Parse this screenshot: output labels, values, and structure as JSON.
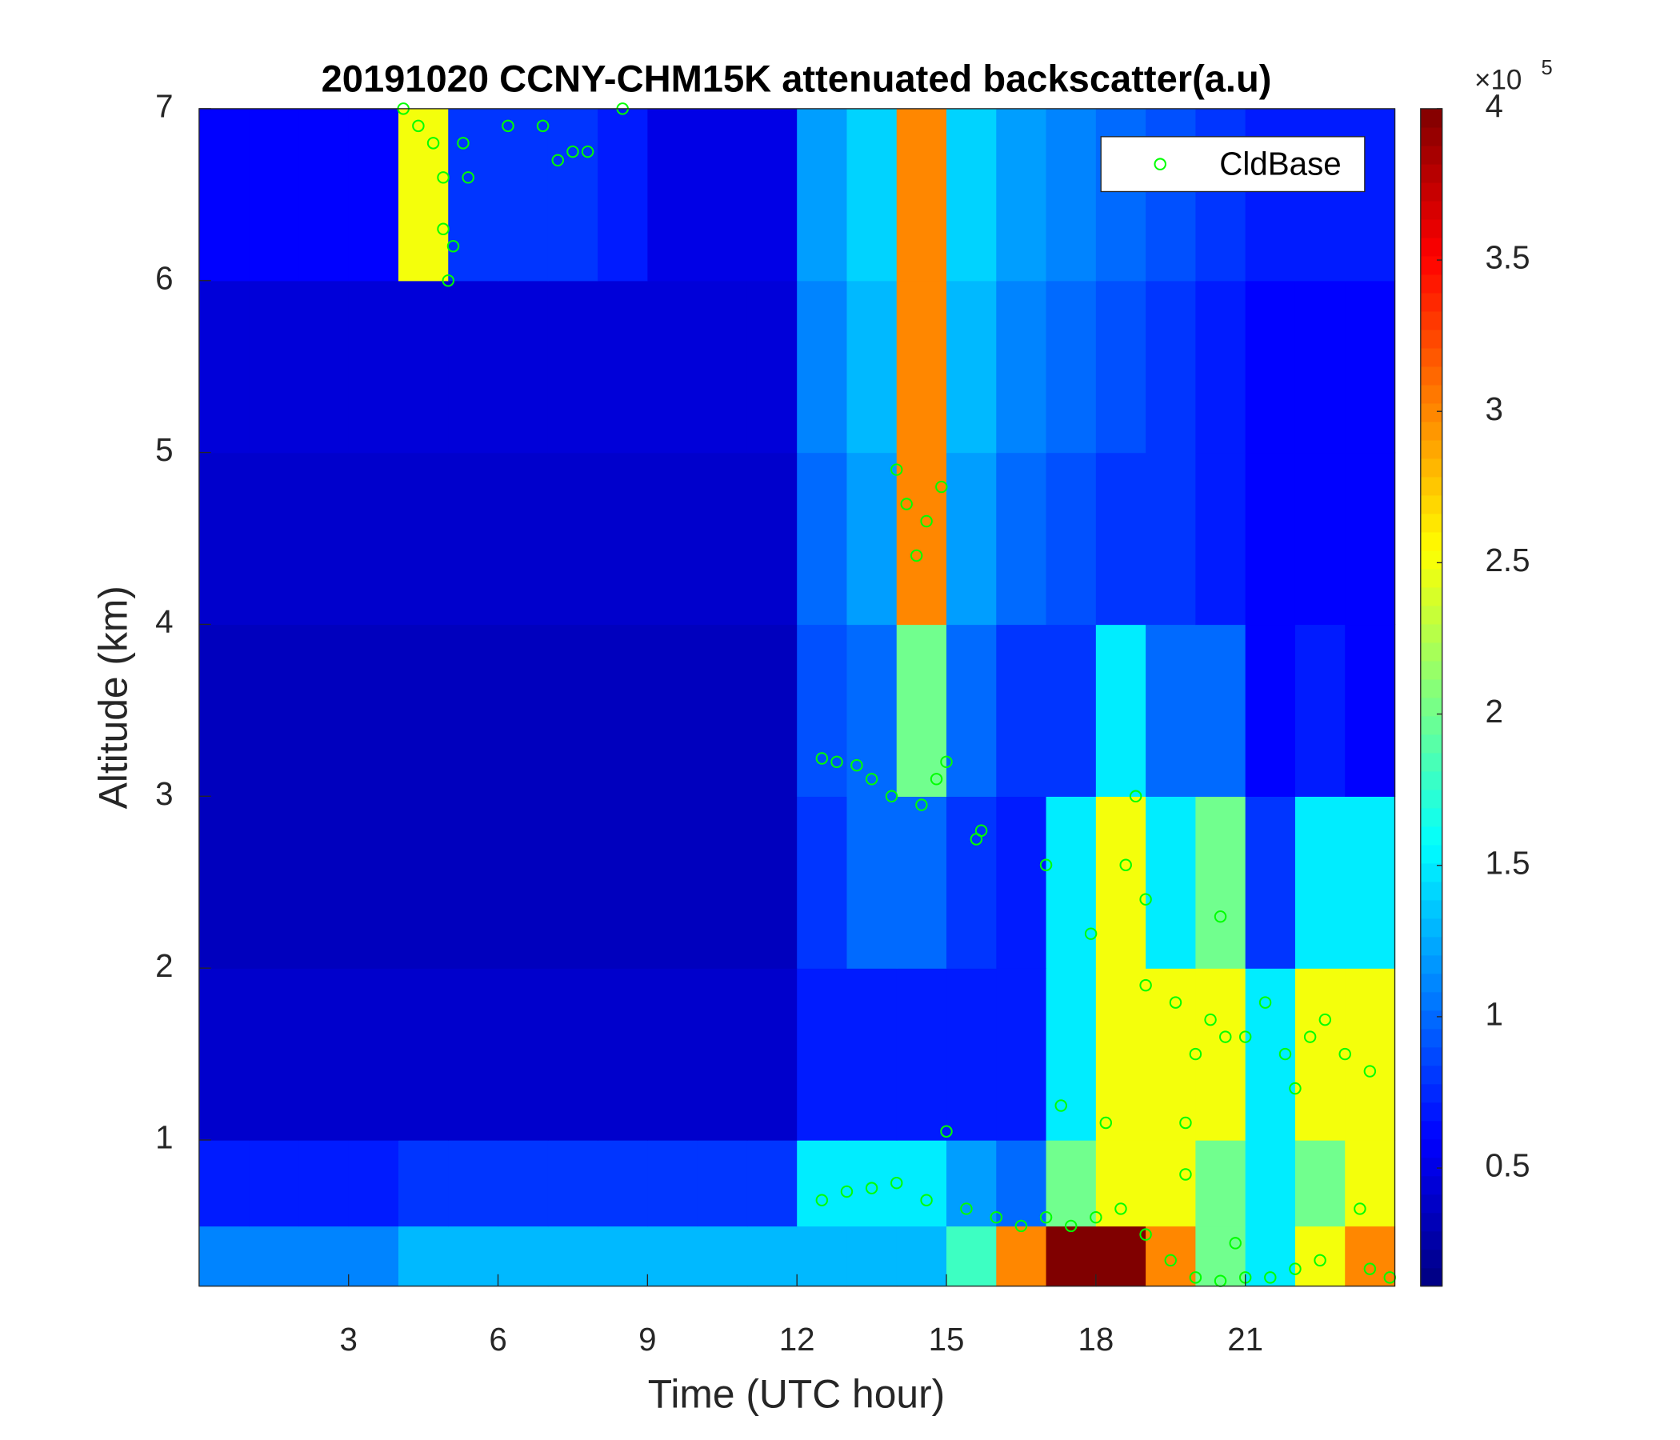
{
  "chart_data": {
    "type": "heatmap",
    "title": "20191020 CCNY-CHM15K attenuated backscatter(a.u)",
    "xlabel": "Time (UTC hour)",
    "ylabel": "Altitude (km)",
    "xlim": [
      0,
      24
    ],
    "ylim": [
      0.15,
      7
    ],
    "xticks": [
      3,
      6,
      9,
      12,
      15,
      18,
      21
    ],
    "yticks": [
      1,
      2,
      3,
      4,
      5,
      6,
      7
    ],
    "x_edges": [
      0,
      1,
      2,
      3,
      4,
      5,
      6,
      7,
      8,
      9,
      10,
      11,
      12,
      13,
      14,
      15,
      16,
      17,
      18,
      19,
      20,
      21,
      22,
      23,
      24
    ],
    "y_edges": [
      0.15,
      0.5,
      1,
      2,
      3,
      4,
      5,
      6,
      7
    ],
    "z": [
      [
        1.1,
        1.1,
        1.1,
        1.1,
        1.3,
        1.3,
        1.3,
        1.3,
        1.3,
        1.3,
        1.3,
        1.3,
        1.3,
        1.3,
        1.3,
        1.8,
        3.0,
        4,
        4,
        3.0,
        2.0,
        1.5,
        2.5,
        3.0
      ],
      [
        0.7,
        0.7,
        0.7,
        0.7,
        0.8,
        0.8,
        0.8,
        0.8,
        0.8,
        0.8,
        0.8,
        0.8,
        1.5,
        1.5,
        1.5,
        1.2,
        1.0,
        2.0,
        2.5,
        2.5,
        2.0,
        1.5,
        2.0,
        2.5
      ],
      [
        0.4,
        0.4,
        0.4,
        0.4,
        0.4,
        0.4,
        0.4,
        0.4,
        0.4,
        0.4,
        0.4,
        0.4,
        0.7,
        0.7,
        0.7,
        0.7,
        0.7,
        1.5,
        2.5,
        2.5,
        2.5,
        1.5,
        2.5,
        2.5
      ],
      [
        0.35,
        0.35,
        0.35,
        0.35,
        0.35,
        0.35,
        0.35,
        0.35,
        0.35,
        0.35,
        0.35,
        0.35,
        0.8,
        1.0,
        1.0,
        0.8,
        0.7,
        1.5,
        2.5,
        1.5,
        2.0,
        0.8,
        1.5,
        1.5
      ],
      [
        0.35,
        0.35,
        0.35,
        0.35,
        0.35,
        0.35,
        0.35,
        0.35,
        0.35,
        0.35,
        0.35,
        0.35,
        0.9,
        1.0,
        2.0,
        1.0,
        0.8,
        0.8,
        1.5,
        1.0,
        1.0,
        0.6,
        0.7,
        0.6
      ],
      [
        0.4,
        0.4,
        0.4,
        0.4,
        0.4,
        0.4,
        0.4,
        0.4,
        0.4,
        0.4,
        0.4,
        0.4,
        1.0,
        1.2,
        3.0,
        1.2,
        1.0,
        0.9,
        0.8,
        0.8,
        0.7,
        0.6,
        0.6,
        0.6
      ],
      [
        0.45,
        0.45,
        0.45,
        0.45,
        0.45,
        0.45,
        0.45,
        0.45,
        0.45,
        0.45,
        0.45,
        0.45,
        1.1,
        1.3,
        3.0,
        1.3,
        1.1,
        1.0,
        0.9,
        0.8,
        0.7,
        0.6,
        0.6,
        0.6
      ],
      [
        0.6,
        0.6,
        0.6,
        0.6,
        2.5,
        0.8,
        0.8,
        0.8,
        0.7,
        0.5,
        0.5,
        0.5,
        1.2,
        1.4,
        3.0,
        1.4,
        1.2,
        1.1,
        1.0,
        0.9,
        0.8,
        0.7,
        0.7,
        0.7
      ]
    ],
    "colormap": "jet",
    "clim": [
      0.11,
      4
    ],
    "colorbar_ticks": [
      0.5,
      1,
      1.5,
      2,
      2.5,
      3,
      3.5,
      4
    ],
    "colorbar_multiplier": "×10",
    "colorbar_exponent": 5,
    "legend": "northeast",
    "series": [
      {
        "name": "CldBase",
        "type": "scatter",
        "color": "#00ff00",
        "x": [
          4.1,
          4.4,
          4.7,
          4.9,
          4.9,
          5.0,
          5.1,
          5.3,
          5.4,
          6.2,
          6.9,
          7.2,
          7.5,
          7.8,
          8.5,
          14.0,
          14.2,
          14.4,
          14.6,
          14.9,
          12.5,
          12.8,
          13.2,
          13.5,
          13.9,
          14.5,
          14.8,
          15.0,
          15.6,
          15.7,
          12.5,
          13.0,
          13.5,
          14.0,
          14.6,
          15.0,
          15.4,
          16.0,
          16.5,
          17.0,
          17.5,
          18.0,
          18.5,
          19.0,
          19.5,
          20.0,
          20.5,
          21.0,
          21.5,
          22.0,
          22.5,
          23.5,
          23.9,
          17.3,
          17.9,
          18.2,
          18.6,
          18.8,
          19.0,
          19.0,
          19.6,
          19.8,
          20.0,
          20.3,
          20.5,
          20.6,
          21.0,
          21.4,
          21.8,
          22.0,
          22.3,
          22.6,
          23.0,
          23.5,
          19.8,
          20.8,
          17.0,
          23.3
        ],
        "y": [
          7.0,
          6.9,
          6.8,
          6.6,
          6.3,
          6.0,
          6.2,
          6.8,
          6.6,
          6.9,
          6.9,
          6.7,
          6.75,
          6.75,
          7.0,
          4.9,
          4.7,
          4.4,
          4.6,
          4.8,
          3.22,
          3.2,
          3.18,
          3.1,
          3.0,
          2.95,
          3.1,
          3.2,
          2.75,
          2.8,
          0.65,
          0.7,
          0.72,
          0.75,
          0.65,
          1.05,
          0.6,
          0.55,
          0.5,
          0.55,
          0.5,
          0.55,
          0.6,
          0.45,
          0.3,
          0.2,
          0.18,
          0.2,
          0.2,
          0.25,
          0.3,
          0.25,
          0.2,
          1.2,
          2.2,
          1.1,
          2.6,
          3.0,
          2.4,
          1.9,
          1.8,
          1.1,
          1.5,
          1.7,
          2.3,
          1.6,
          1.6,
          1.8,
          1.5,
          1.3,
          1.6,
          1.7,
          1.5,
          1.4,
          0.8,
          0.4,
          2.6,
          0.6
        ]
      }
    ]
  }
}
